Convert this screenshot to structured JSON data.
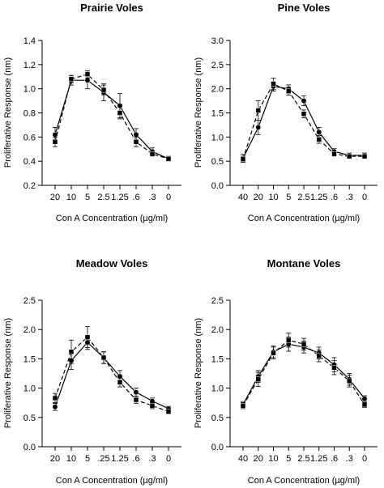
{
  "figure": {
    "colors": {
      "ink": "#000000",
      "background": "#ffffff"
    }
  },
  "chart_data": [
    {
      "type": "line",
      "title": "Prairie Voles",
      "xlabel": "Con A Concentration (µg/ml)",
      "ylabel": "Proliferative Response (nm)",
      "categories": [
        "20",
        "10",
        "5",
        "2.5",
        "1.25",
        ".6",
        ".3",
        "0"
      ],
      "ylim": [
        0.2,
        1.4
      ],
      "yticks": [
        "0.2",
        "0.4",
        "0.6",
        "0.8",
        "1.0",
        "1.2",
        "1.4"
      ],
      "grid": false,
      "series": [
        {
          "marker": "circle",
          "line": "solid",
          "values": [
            0.62,
            1.07,
            1.07,
            0.97,
            0.86,
            0.62,
            0.48,
            0.42
          ],
          "errors": [
            0.06,
            0.04,
            0.07,
            0.07,
            0.1,
            0.05,
            0.03,
            0.02
          ]
        },
        {
          "marker": "square",
          "line": "dashed",
          "values": [
            0.56,
            1.08,
            1.12,
            0.99,
            0.8,
            0.56,
            0.46,
            0.42
          ],
          "errors": [
            0.04,
            0.03,
            0.03,
            0.04,
            0.05,
            0.04,
            0.02,
            0.02
          ]
        }
      ]
    },
    {
      "type": "line",
      "title": "Pine Voles",
      "xlabel": "Con A Concentration (µg/ml)",
      "ylabel": "Proliferative Response (nm)",
      "categories": [
        "40",
        "20",
        "10",
        "5",
        "2.5",
        "1.25",
        ".6",
        ".3",
        "0"
      ],
      "ylim": [
        0.0,
        3.0
      ],
      "yticks": [
        "0.0",
        "0.5",
        "1.0",
        "1.5",
        "2.0",
        "2.5",
        "3.0"
      ],
      "grid": false,
      "series": [
        {
          "marker": "circle",
          "line": "solid",
          "values": [
            0.56,
            1.2,
            2.05,
            2.0,
            1.75,
            1.1,
            0.7,
            0.62,
            0.62
          ],
          "errors": [
            0.08,
            0.15,
            0.1,
            0.08,
            0.1,
            0.1,
            0.06,
            0.05,
            0.05
          ]
        },
        {
          "marker": "square",
          "line": "dashed",
          "values": [
            0.54,
            1.55,
            2.1,
            1.95,
            1.48,
            0.95,
            0.65,
            0.6,
            0.6
          ],
          "errors": [
            0.06,
            0.2,
            0.12,
            0.08,
            0.08,
            0.08,
            0.05,
            0.04,
            0.04
          ]
        }
      ]
    },
    {
      "type": "line",
      "title": "Meadow Voles",
      "xlabel": "Con A Concentration (µg/ml)",
      "ylabel": "Proliferative Response (nm)",
      "categories": [
        "20",
        "10",
        "5",
        ".25",
        "1.25",
        ".6",
        ".3",
        "0"
      ],
      "ylim": [
        0.0,
        2.5
      ],
      "yticks": [
        "0.0",
        "0.5",
        "1.0",
        "1.5",
        "2.0",
        "2.5"
      ],
      "grid": false,
      "series": [
        {
          "marker": "circle",
          "line": "solid",
          "values": [
            0.68,
            1.47,
            1.78,
            1.52,
            1.2,
            0.93,
            0.78,
            0.65
          ],
          "errors": [
            0.06,
            0.15,
            0.12,
            0.1,
            0.1,
            0.07,
            0.05,
            0.04
          ]
        },
        {
          "marker": "square",
          "line": "dashed",
          "values": [
            0.83,
            1.62,
            1.87,
            1.52,
            1.1,
            0.8,
            0.7,
            0.6
          ],
          "errors": [
            0.08,
            0.2,
            0.18,
            0.1,
            0.08,
            0.06,
            0.05,
            0.04
          ]
        }
      ]
    },
    {
      "type": "line",
      "title": "Montane Voles",
      "xlabel": "Con A Concentration (µg/ml)",
      "ylabel": "Proliferative Response (nm)",
      "categories": [
        "40",
        "20",
        "10",
        "5",
        "2.5",
        "1.25",
        ".6",
        ".3",
        "0"
      ],
      "ylim": [
        0.0,
        2.5
      ],
      "yticks": [
        "0.0",
        "0.5",
        "1.0",
        "1.5",
        "2.0",
        "2.5"
      ],
      "grid": false,
      "series": [
        {
          "marker": "circle",
          "line": "solid",
          "values": [
            0.72,
            1.2,
            1.62,
            1.75,
            1.7,
            1.6,
            1.4,
            1.15,
            0.82
          ],
          "errors": [
            0.05,
            0.1,
            0.1,
            0.12,
            0.1,
            0.1,
            0.12,
            0.1,
            0.05
          ]
        },
        {
          "marker": "square",
          "line": "dashed",
          "values": [
            0.7,
            1.15,
            1.6,
            1.82,
            1.75,
            1.55,
            1.35,
            1.12,
            0.72
          ],
          "errors": [
            0.05,
            0.12,
            0.1,
            0.12,
            0.1,
            0.1,
            0.12,
            0.1,
            0.05
          ]
        }
      ]
    }
  ]
}
